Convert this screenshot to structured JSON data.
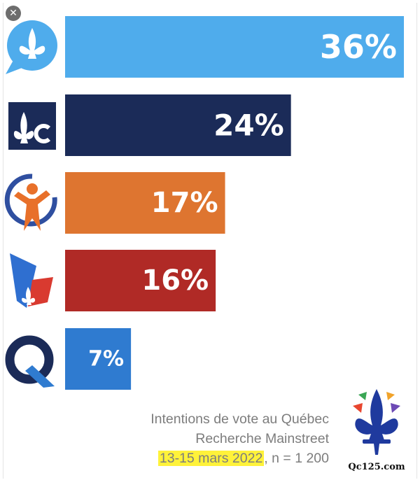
{
  "close_icon": "close-icon",
  "chart_data": {
    "type": "bar",
    "orientation": "horizontal",
    "categories": [
      "CAQ",
      "PLQ",
      "QS",
      "PQ",
      "PCQ"
    ],
    "category_display": "party-logos",
    "values": [
      36,
      24,
      17,
      16,
      7
    ],
    "value_labels": [
      "36%",
      "24%",
      "17%",
      "16%",
      "7%"
    ],
    "colors": [
      "#4facec",
      "#1b2b58",
      "#de7530",
      "#b02a26",
      "#2f7bd0"
    ],
    "logo_icons": [
      "caq-logo-icon",
      "plq-logo-icon",
      "qs-logo-icon",
      "pq-logo-icon",
      "pcq-logo-icon"
    ],
    "xlim": [
      0,
      36
    ],
    "grid": false,
    "legend": "none"
  },
  "caption": {
    "line1": "Intentions de vote au Québec",
    "line2": "Recherche Mainstreet",
    "date": "13-15 mars 2022",
    "sample": ", n = 1 200"
  },
  "site_logo": {
    "icon": "fleur-de-lis-icon",
    "name": "Qc125.com",
    "colors": [
      "#1f3a9e",
      "#e8462f",
      "#f1a32a",
      "#3aa655",
      "#6d4ab5"
    ]
  }
}
